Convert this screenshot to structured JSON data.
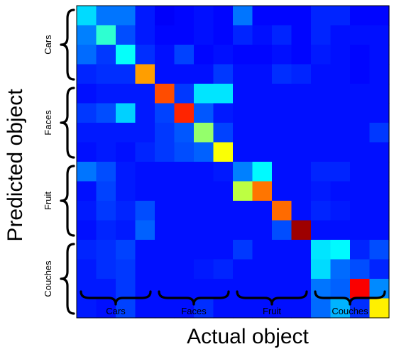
{
  "chart_data": {
    "type": "heatmap",
    "title": "",
    "xlabel": "Actual object",
    "ylabel": "Predicted object",
    "x_groups": [
      "Cars",
      "Faces",
      "Fruit",
      "Couches"
    ],
    "y_groups": [
      "Cars",
      "Faces",
      "Fruit",
      "Couches"
    ],
    "items_per_group": 4,
    "colormap": "jet",
    "value_range": [
      0,
      1
    ],
    "matrix": [
      [
        0.34,
        0.24,
        0.24,
        0.15,
        0.12,
        0.13,
        0.14,
        0.13,
        0.24,
        0.13,
        0.13,
        0.13,
        0.16,
        0.16,
        0.13,
        0.13
      ],
      [
        0.25,
        0.42,
        0.2,
        0.15,
        0.13,
        0.13,
        0.14,
        0.13,
        0.16,
        0.14,
        0.16,
        0.13,
        0.16,
        0.14,
        0.14,
        0.14
      ],
      [
        0.23,
        0.18,
        0.38,
        0.17,
        0.14,
        0.19,
        0.13,
        0.14,
        0.13,
        0.13,
        0.14,
        0.13,
        0.15,
        0.14,
        0.13,
        0.14
      ],
      [
        0.16,
        0.17,
        0.17,
        0.72,
        0.14,
        0.14,
        0.14,
        0.18,
        0.14,
        0.14,
        0.17,
        0.16,
        0.14,
        0.14,
        0.13,
        0.14
      ],
      [
        0.14,
        0.15,
        0.15,
        0.15,
        0.8,
        0.18,
        0.35,
        0.35,
        0.14,
        0.14,
        0.14,
        0.14,
        0.14,
        0.14,
        0.14,
        0.14
      ],
      [
        0.18,
        0.2,
        0.33,
        0.15,
        0.19,
        0.84,
        0.21,
        0.15,
        0.14,
        0.14,
        0.14,
        0.14,
        0.14,
        0.14,
        0.14,
        0.14
      ],
      [
        0.15,
        0.15,
        0.15,
        0.15,
        0.18,
        0.21,
        0.52,
        0.19,
        0.14,
        0.14,
        0.14,
        0.14,
        0.14,
        0.14,
        0.14,
        0.18
      ],
      [
        0.14,
        0.15,
        0.14,
        0.16,
        0.18,
        0.2,
        0.22,
        0.62,
        0.14,
        0.14,
        0.14,
        0.14,
        0.14,
        0.14,
        0.14,
        0.14
      ],
      [
        0.24,
        0.2,
        0.15,
        0.14,
        0.14,
        0.14,
        0.14,
        0.15,
        0.25,
        0.37,
        0.14,
        0.14,
        0.16,
        0.16,
        0.14,
        0.14
      ],
      [
        0.14,
        0.19,
        0.15,
        0.14,
        0.14,
        0.14,
        0.14,
        0.14,
        0.56,
        0.76,
        0.14,
        0.14,
        0.15,
        0.14,
        0.14,
        0.14
      ],
      [
        0.15,
        0.18,
        0.16,
        0.2,
        0.14,
        0.14,
        0.14,
        0.14,
        0.14,
        0.14,
        0.77,
        0.14,
        0.16,
        0.15,
        0.14,
        0.14
      ],
      [
        0.14,
        0.16,
        0.15,
        0.22,
        0.14,
        0.14,
        0.14,
        0.14,
        0.14,
        0.14,
        0.2,
        0.97,
        0.14,
        0.14,
        0.14,
        0.14
      ],
      [
        0.16,
        0.17,
        0.19,
        0.14,
        0.14,
        0.14,
        0.14,
        0.14,
        0.18,
        0.14,
        0.14,
        0.14,
        0.35,
        0.37,
        0.16,
        0.2
      ],
      [
        0.15,
        0.17,
        0.18,
        0.14,
        0.14,
        0.14,
        0.15,
        0.16,
        0.14,
        0.14,
        0.14,
        0.14,
        0.34,
        0.23,
        0.2,
        0.16
      ],
      [
        0.15,
        0.15,
        0.18,
        0.14,
        0.14,
        0.14,
        0.14,
        0.14,
        0.14,
        0.14,
        0.14,
        0.14,
        0.24,
        0.22,
        0.88,
        0.26
      ],
      [
        0.15,
        0.14,
        0.19,
        0.14,
        0.14,
        0.14,
        0.17,
        0.14,
        0.14,
        0.14,
        0.14,
        0.14,
        0.23,
        0.3,
        0.17,
        0.64
      ]
    ]
  }
}
